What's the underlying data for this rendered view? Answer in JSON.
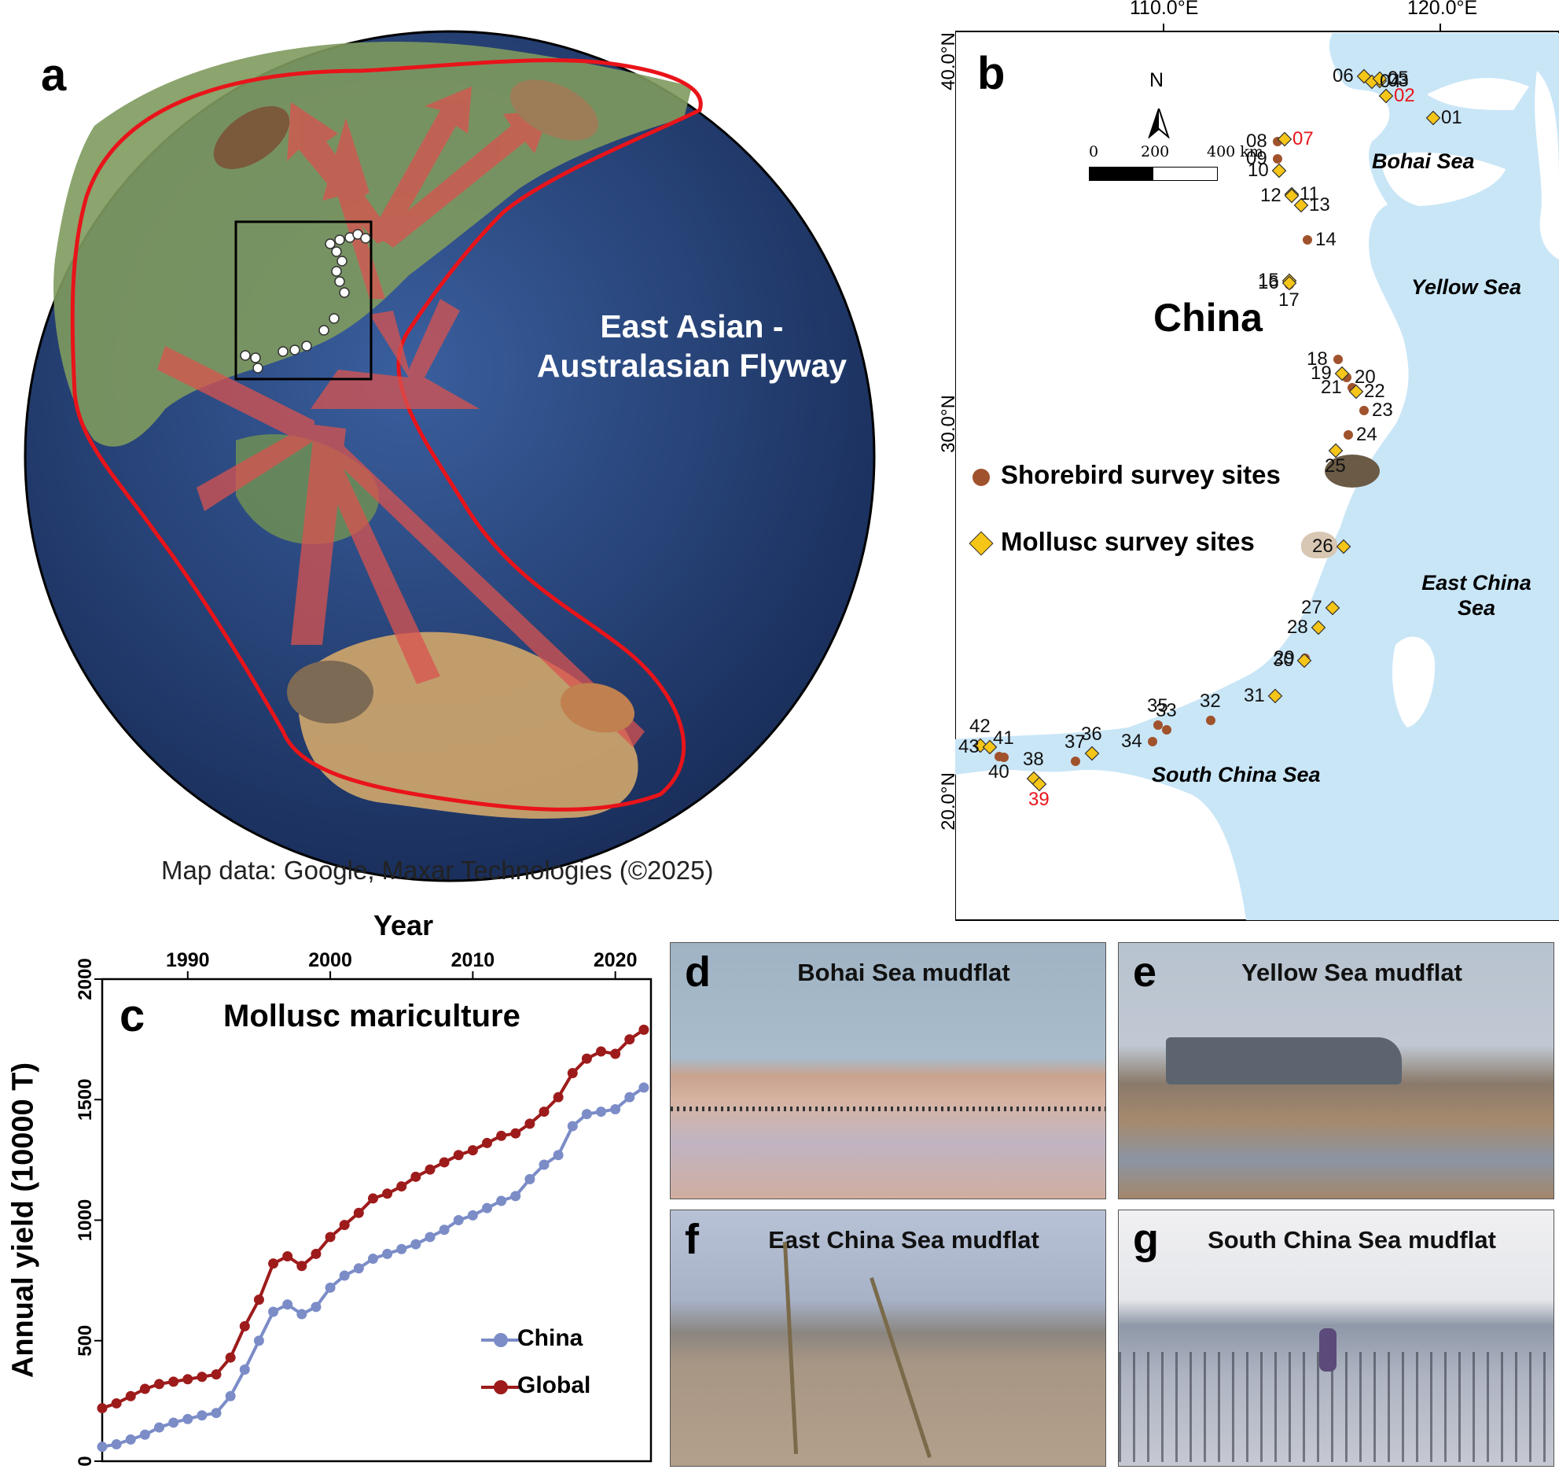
{
  "panel_a": {
    "letter": "a",
    "flyway_label_line1": "East Asian -",
    "flyway_label_line2": "Australasian Flyway",
    "credit": "Map data: Google, Maxar Technologies (©2025)",
    "colors": {
      "ocean": "#24427a",
      "flyway_outline": "#e8141a",
      "arrows": "#d9534f"
    }
  },
  "panel_b": {
    "letter": "b",
    "lon_labels": [
      "110.0°E",
      "120.0°E"
    ],
    "lat_labels": [
      "40.0°N",
      "30.0°N",
      "20.0°N"
    ],
    "north": "N",
    "scale_labels": [
      "0",
      "200",
      "400 km"
    ],
    "country": "China",
    "seas": {
      "bohai": "Bohai Sea",
      "yellow": "Yellow Sea",
      "east_l1": "East China",
      "east_l2": "Sea",
      "south": "South China Sea"
    },
    "legend": {
      "shorebird": "Shorebird survey sites",
      "mollusc": "Mollusc survey sites"
    },
    "site_labels": [
      {
        "id": "01",
        "red": false
      },
      {
        "id": "02",
        "red": true
      },
      {
        "id": "03",
        "red": false
      },
      {
        "id": "04",
        "red": false
      },
      {
        "id": "05",
        "red": false
      },
      {
        "id": "06",
        "red": false
      },
      {
        "id": "07",
        "red": true
      },
      {
        "id": "08",
        "red": false
      },
      {
        "id": "09",
        "red": false
      },
      {
        "id": "10",
        "red": false
      },
      {
        "id": "11",
        "red": false
      },
      {
        "id": "12",
        "red": false
      },
      {
        "id": "13",
        "red": false
      },
      {
        "id": "14",
        "red": false
      },
      {
        "id": "15",
        "red": false
      },
      {
        "id": "16",
        "red": false
      },
      {
        "id": "17",
        "red": false
      },
      {
        "id": "18",
        "red": false
      },
      {
        "id": "19",
        "red": false
      },
      {
        "id": "20",
        "red": false
      },
      {
        "id": "21",
        "red": false
      },
      {
        "id": "22",
        "red": false
      },
      {
        "id": "23",
        "red": false
      },
      {
        "id": "24",
        "red": false
      },
      {
        "id": "25",
        "red": false
      },
      {
        "id": "26",
        "red": false
      },
      {
        "id": "27",
        "red": false
      },
      {
        "id": "28",
        "red": false
      },
      {
        "id": "29",
        "red": false
      },
      {
        "id": "30",
        "red": false
      },
      {
        "id": "31",
        "red": false
      },
      {
        "id": "32",
        "red": false
      },
      {
        "id": "33",
        "red": false
      },
      {
        "id": "34",
        "red": false
      },
      {
        "id": "35",
        "red": false
      },
      {
        "id": "36",
        "red": false
      },
      {
        "id": "37",
        "red": false
      },
      {
        "id": "38",
        "red": false
      },
      {
        "id": "39",
        "red": true
      },
      {
        "id": "40",
        "red": false
      },
      {
        "id": "41",
        "red": false
      },
      {
        "id": "42",
        "red": false
      },
      {
        "id": "43",
        "red": false
      }
    ],
    "colors": {
      "sea": "#c9e6f7",
      "shorebird_dot": "#a0522d",
      "mollusc_diamond": "#f5c518"
    }
  },
  "panel_c": {
    "letter": "c",
    "chart_data": {
      "type": "line",
      "title": "Mollusc mariculture",
      "xlabel": "Year",
      "ylabel": "Annual yield (10000 T)",
      "x_ticks": [
        "1990",
        "2000",
        "2010",
        "2020"
      ],
      "y_ticks": [
        "0",
        "500",
        "1000",
        "1500",
        "2000"
      ],
      "xlim": [
        1984,
        2022.5
      ],
      "ylim": [
        0,
        2000
      ],
      "x": [
        1984,
        1985,
        1986,
        1987,
        1988,
        1989,
        1990,
        1991,
        1992,
        1993,
        1994,
        1995,
        1996,
        1997,
        1998,
        1999,
        2000,
        2001,
        2002,
        2003,
        2004,
        2005,
        2006,
        2007,
        2008,
        2009,
        2010,
        2011,
        2012,
        2013,
        2014,
        2015,
        2016,
        2017,
        2018,
        2019,
        2020,
        2021,
        2022
      ],
      "series": [
        {
          "name": "China",
          "color": "#7b8cc7",
          "values": [
            60,
            70,
            90,
            110,
            140,
            160,
            175,
            190,
            200,
            270,
            380,
            500,
            620,
            650,
            610,
            640,
            720,
            770,
            800,
            840,
            860,
            880,
            900,
            930,
            960,
            1000,
            1020,
            1050,
            1080,
            1100,
            1170,
            1230,
            1270,
            1390,
            1440,
            1450,
            1460,
            1510,
            1550
          ]
        },
        {
          "name": "Global",
          "color": "#9e1b1b",
          "values": [
            220,
            240,
            270,
            300,
            320,
            330,
            340,
            350,
            360,
            430,
            560,
            670,
            820,
            850,
            810,
            860,
            930,
            980,
            1030,
            1090,
            1110,
            1140,
            1180,
            1210,
            1240,
            1270,
            1290,
            1320,
            1350,
            1360,
            1400,
            1450,
            1510,
            1610,
            1670,
            1700,
            1690,
            1750,
            1790
          ]
        }
      ],
      "legend_position": "bottom-right"
    }
  },
  "photos": [
    {
      "letter": "d",
      "title": "Bohai Sea mudflat"
    },
    {
      "letter": "e",
      "title": "Yellow Sea mudflat"
    },
    {
      "letter": "f",
      "title": "East China Sea mudflat"
    },
    {
      "letter": "g",
      "title": "South China Sea mudflat"
    }
  ]
}
